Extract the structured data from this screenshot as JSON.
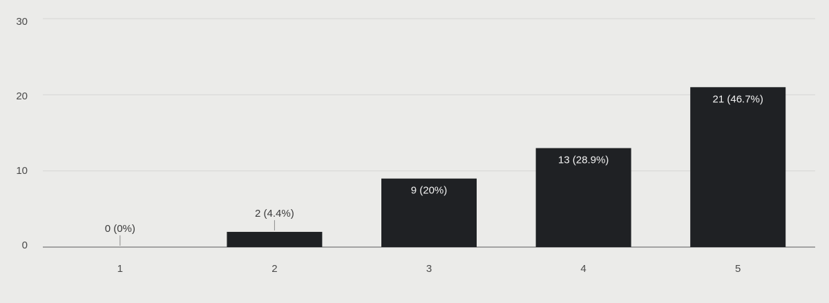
{
  "chart_data": {
    "type": "bar",
    "categories": [
      "1",
      "2",
      "3",
      "4",
      "5"
    ],
    "values": [
      0,
      2,
      9,
      13,
      21
    ],
    "data_labels": [
      "0 (0%)",
      "2 (4.4%)",
      "9 (20%)",
      "13 (28.9%)",
      "21 (46.7%)"
    ],
    "yticks": [
      "0",
      "10",
      "20",
      "30"
    ],
    "ylim": [
      0,
      30
    ],
    "title": "",
    "xlabel": "",
    "ylabel": "",
    "grid": true,
    "colors": {
      "bar": "#1f2124",
      "grid": "#d6d6d4",
      "axis": "#8a8a8a",
      "label_outside": "#3a3a3a",
      "label_inside": "#f2f2f2"
    }
  }
}
